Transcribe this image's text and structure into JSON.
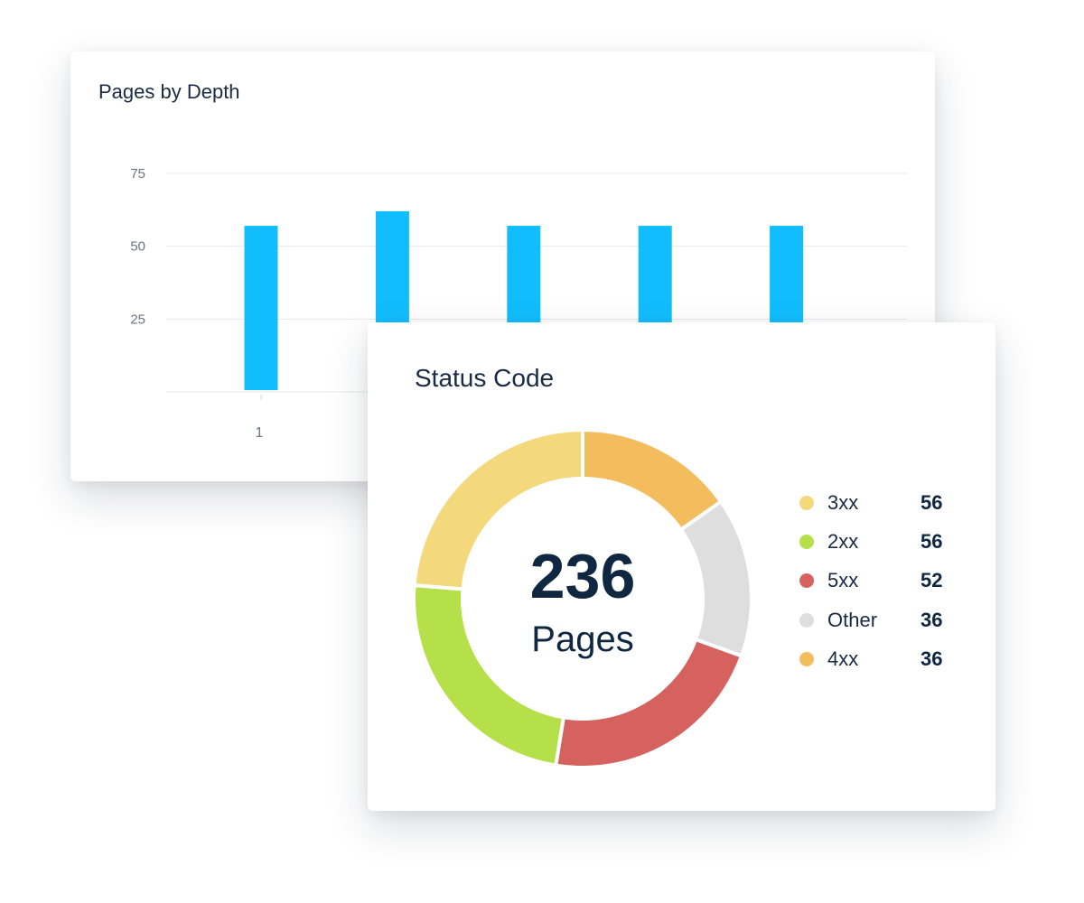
{
  "chart_data": [
    {
      "type": "bar",
      "title": "Pages by Depth",
      "xlabel": "",
      "ylabel": "",
      "categories": [
        "1",
        "",
        "",
        "",
        ""
      ],
      "values": [
        57,
        62,
        57,
        57,
        57
      ],
      "y_ticks": [
        "25",
        "50",
        "75"
      ],
      "ylim": [
        0,
        75
      ],
      "grid": true,
      "colors": {
        "bar": "#12bdfd",
        "grid": "#e6e9ee",
        "tick_text": "#6b7482"
      }
    },
    {
      "type": "pie",
      "title": "Status Code",
      "center_value": "236",
      "center_label": "Pages",
      "total": 236,
      "slices": [
        {
          "label": "4xx",
          "value": 36,
          "color": "#f3bd5e"
        },
        {
          "label": "Other",
          "value": 36,
          "color": "#dedede"
        },
        {
          "label": "5xx",
          "value": 52,
          "color": "#d66260"
        },
        {
          "label": "2xx",
          "value": 56,
          "color": "#b6e04a"
        },
        {
          "label": "3xx",
          "value": 56,
          "color": "#f3d97b"
        }
      ],
      "legend": [
        {
          "label": "3xx",
          "value": "56",
          "color": "#f3d97b"
        },
        {
          "label": "2xx",
          "value": "56",
          "color": "#b6e04a"
        },
        {
          "label": "5xx",
          "value": "52",
          "color": "#d66260"
        },
        {
          "label": "Other",
          "value": "36",
          "color": "#dedede"
        },
        {
          "label": "4xx",
          "value": "36",
          "color": "#f3bd5e"
        }
      ],
      "legend_position": "right",
      "text_color": "#0f2741"
    }
  ]
}
